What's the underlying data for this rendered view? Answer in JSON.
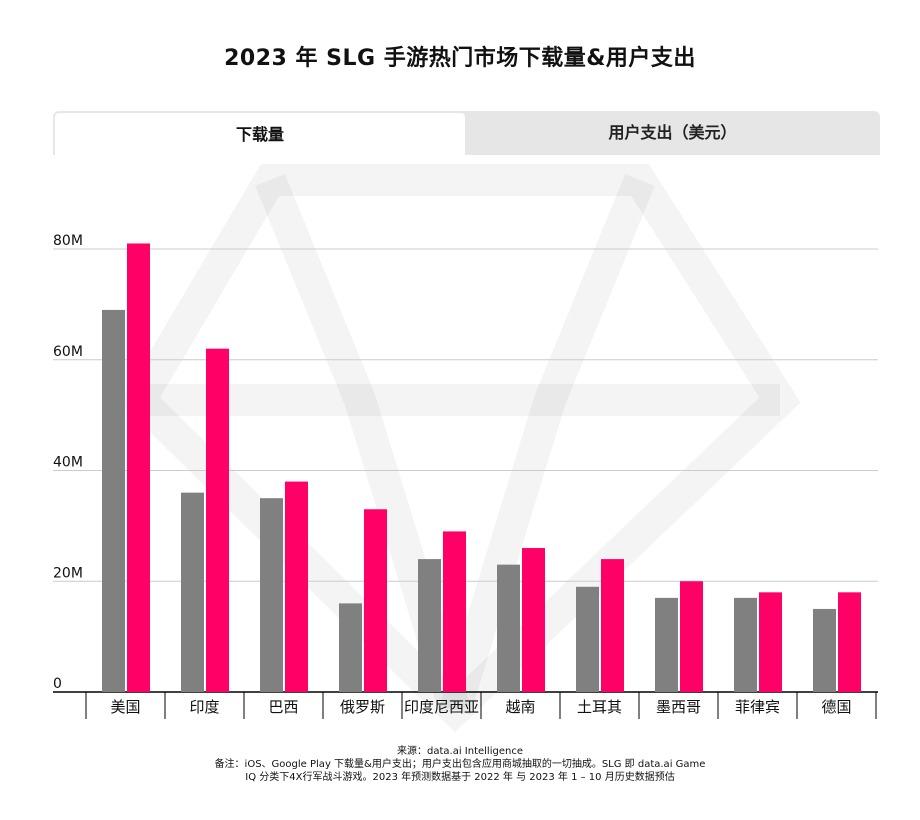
{
  "title": "2023 年 SLG 手游热门市场下载量&用户支出",
  "tabs": [
    {
      "label": "下载量",
      "active": true
    },
    {
      "label": "用户支出（美元）",
      "active": false
    }
  ],
  "footnote": {
    "line1": "来源：data.ai Intelligence",
    "line2": "备注：iOS、Google Play 下载量&用户支出；用户支出包含应用商城抽取的一切抽成。SLG 即 data.ai Game",
    "line3": "IQ 分类下4X行军战斗游戏。2023 年预测数据基于 2022 年 与 2023 年 1 – 10 月历史数据预估"
  },
  "colors": {
    "series_2022": "#808080",
    "series_2023": "#ff0066",
    "grid": "#cccccc",
    "axis": "#000000"
  },
  "chart_data": {
    "type": "bar",
    "categories": [
      "美国",
      "印度",
      "巴西",
      "俄罗斯",
      "印度尼西亚",
      "越南",
      "土耳其",
      "墨西哥",
      "菲律宾",
      "德国"
    ],
    "series": [
      {
        "values": [
          69,
          36,
          35,
          16,
          24,
          23,
          19,
          17,
          17,
          15
        ],
        "color": "#808080"
      },
      {
        "values": [
          81,
          62,
          38,
          33,
          29,
          26,
          24,
          20,
          18,
          18
        ],
        "color": "#ff0066"
      }
    ],
    "yticks": [
      0,
      20,
      40,
      60,
      80
    ],
    "ytick_labels": [
      "0",
      "20M",
      "40M",
      "60M",
      "80M"
    ],
    "ylim": [
      0,
      80
    ],
    "unit": "M",
    "grid": true,
    "legend": "none"
  }
}
